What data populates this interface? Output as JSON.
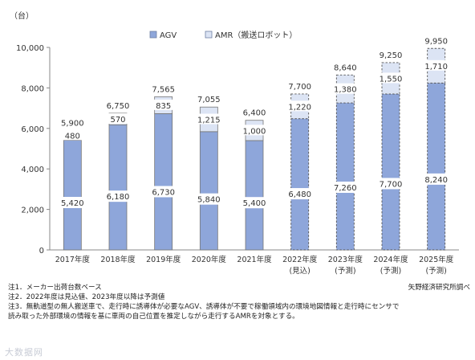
{
  "chart_data": {
    "type": "bar",
    "stacked": true,
    "unit_label": "（台）",
    "categories": [
      "2017年度",
      "2018年度",
      "2019年度",
      "2020年度",
      "2021年度",
      "2022年度",
      "2023年度",
      "2024年度",
      "2025年度"
    ],
    "category_sublabels": [
      "",
      "",
      "",
      "",
      "",
      "(見込)",
      "(予測)",
      "(予測)",
      "(予測)"
    ],
    "series": [
      {
        "name": "AGV",
        "color": "#8EA6DA",
        "values": [
          5420,
          6180,
          6730,
          5840,
          5400,
          6480,
          7260,
          7700,
          8240
        ]
      },
      {
        "name": "AMR（搬送ロボット）",
        "color": "#DCE4F4",
        "values": [
          480,
          570,
          835,
          1215,
          1000,
          1220,
          1380,
          1550,
          1710
        ]
      }
    ],
    "totals": [
      5900,
      6750,
      7565,
      7055,
      6400,
      7700,
      8640,
      9250,
      9950
    ],
    "dashed_categories": [
      "2022年度",
      "2023年度",
      "2024年度",
      "2025年度"
    ],
    "ylim": [
      0,
      10000
    ],
    "yticks": [
      0,
      2000,
      4000,
      6000,
      8000,
      10000
    ],
    "ytick_labels": [
      "0",
      "2,000",
      "4,000",
      "6,000",
      "8,000",
      "10,000"
    ],
    "legend_position": "top",
    "grid": false
  },
  "notes": {
    "note1": "注1．メーカー出荷台数ベース",
    "note2": "注2．2022年度は見込値、2023年度以降は予測値",
    "note3_line1": "注3．無軌道型の無人搬送車で、走行時に誘導体が必要なAGV、誘導体が不要で稼働領域内の環境地図情報と走行時にセンサで",
    "note3_line2": "読み取った外部環境の情報を基に車両の自己位置を推定しながら走行するAMRを対象とする。",
    "source": "矢野経済研究所調べ"
  },
  "watermark": "大数据网"
}
